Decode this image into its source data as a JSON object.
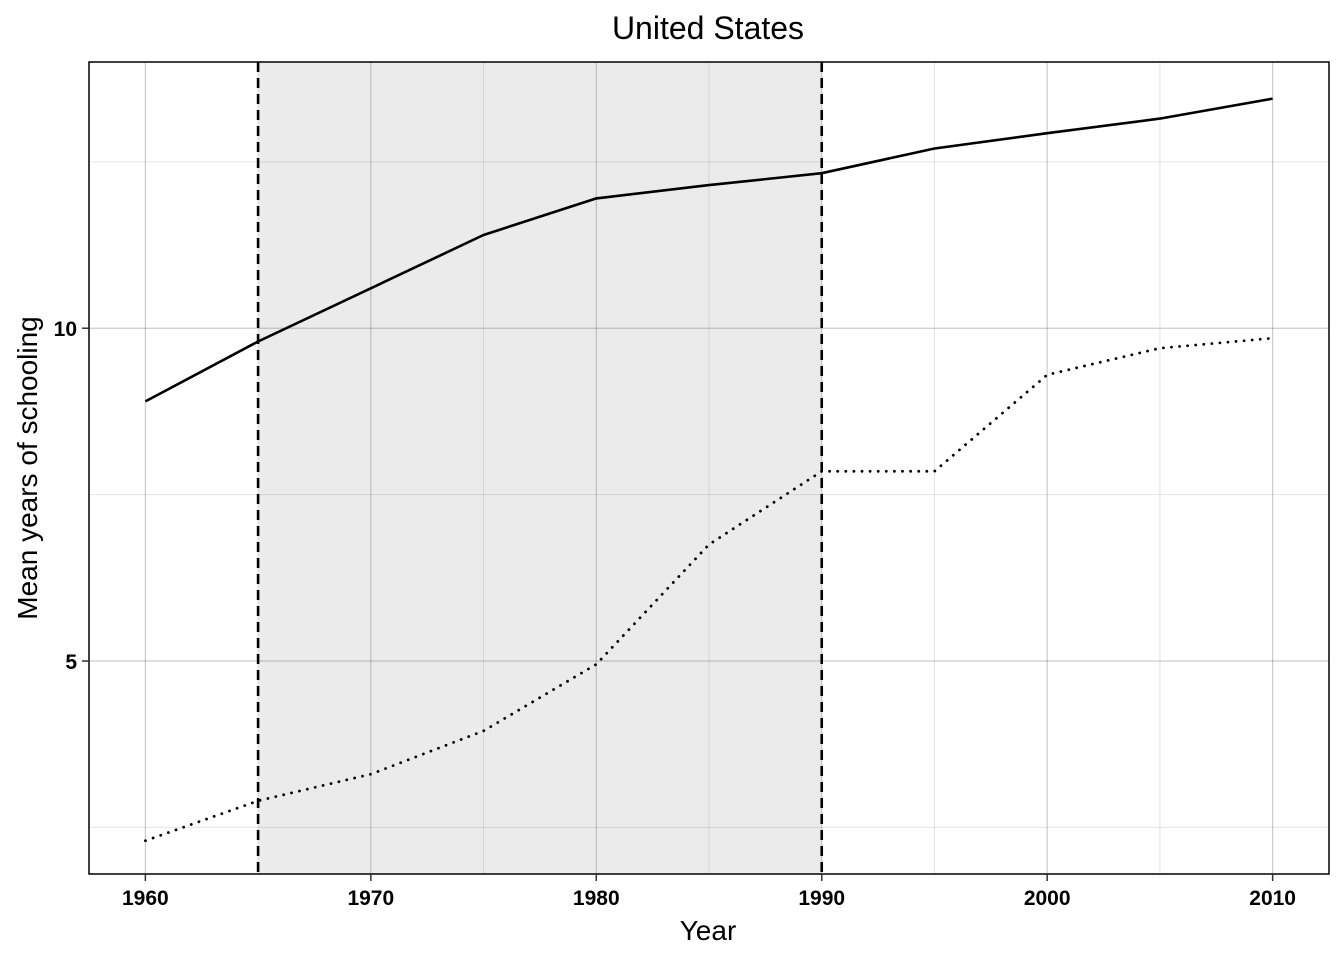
{
  "chart_data": {
    "type": "line",
    "title": "United States",
    "xlabel": "Year",
    "ylabel": "Mean years of schooling",
    "xlim": [
      1957.5,
      2012.5
    ],
    "ylim": [
      1.8,
      14.0
    ],
    "x_ticks": [
      1960,
      1970,
      1980,
      1990,
      2000,
      2010
    ],
    "y_ticks": [
      5,
      10
    ],
    "grid": true,
    "legend": "none",
    "shaded_region": {
      "x_start": 1965,
      "x_end": 1990
    },
    "vertical_lines": [
      1965,
      1990
    ],
    "x": [
      1960,
      1965,
      1970,
      1975,
      1980,
      1985,
      1990,
      1995,
      2000,
      2005,
      2010
    ],
    "series": [
      {
        "style": "solid",
        "color": "#000000",
        "values": [
          8.9,
          9.8,
          10.6,
          11.4,
          11.95,
          12.15,
          12.33,
          12.7,
          12.93,
          13.15,
          13.45
        ]
      },
      {
        "style": "dotted",
        "color": "#000000",
        "values": [
          2.3,
          2.9,
          3.3,
          3.95,
          4.95,
          6.75,
          7.85,
          7.85,
          9.3,
          9.7,
          9.85
        ]
      }
    ]
  }
}
